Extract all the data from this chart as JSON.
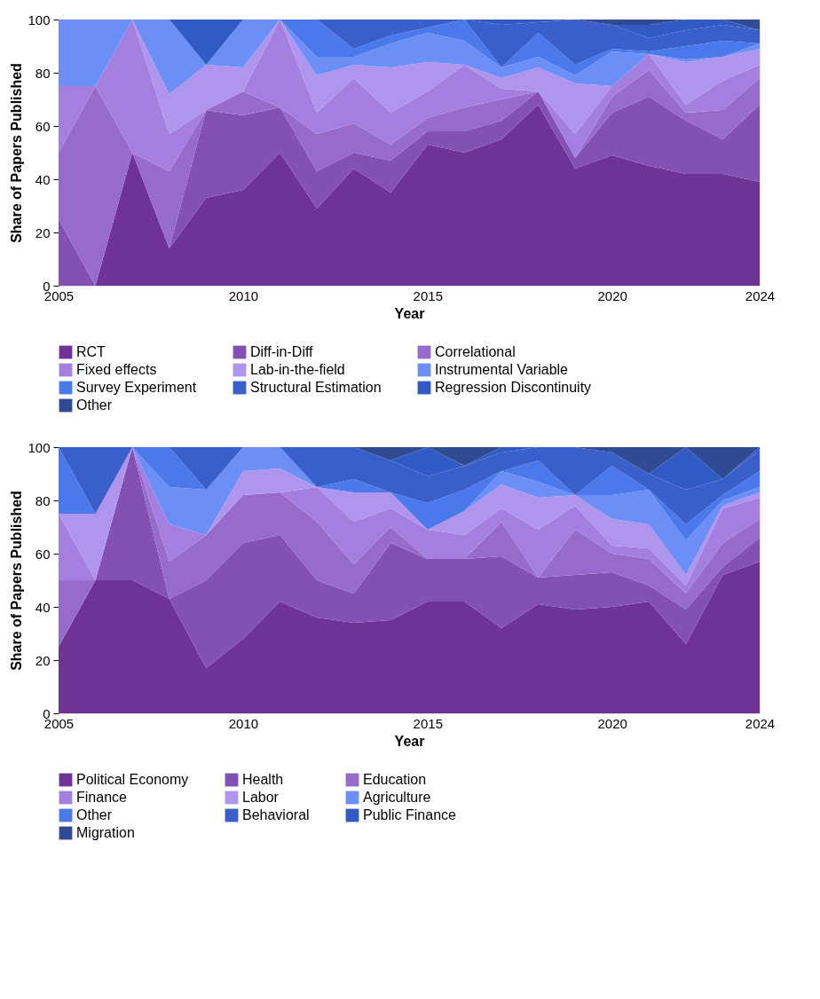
{
  "chart_data": [
    {
      "type": "area",
      "stacked": true,
      "xlabel": "Year",
      "ylabel": "Share of Papers Published",
      "legend": "bottom",
      "grid": false,
      "x": [
        2005,
        2006,
        2007,
        2008,
        2009,
        2010,
        2011,
        2012,
        2013,
        2014,
        2015,
        2016,
        2017,
        2018,
        2019,
        2020,
        2021,
        2022,
        2023,
        2024
      ],
      "xlim": [
        2005,
        2024
      ],
      "xticks": [
        2005,
        2010,
        2015,
        2020,
        2024
      ],
      "ylim": [
        0,
        100
      ],
      "yticks": [
        0,
        20,
        40,
        60,
        80,
        100
      ],
      "tick_labels": "xy",
      "series": [
        {
          "name": "RCT",
          "color": "#6f3398",
          "values": [
            0,
            0,
            50,
            14,
            33,
            36,
            50,
            29,
            44,
            35,
            53,
            50,
            55,
            68,
            44,
            49,
            45,
            42,
            42,
            39
          ]
        },
        {
          "name": "Diff-in-Diff",
          "color": "#8350b3",
          "values": [
            25,
            0,
            0,
            0,
            33,
            28,
            17,
            14,
            6,
            12,
            5,
            8,
            7,
            5,
            4,
            16,
            26,
            20,
            13,
            29
          ]
        },
        {
          "name": "Correlational",
          "color": "#976bcb",
          "values": [
            25,
            75,
            0,
            29,
            0,
            9,
            0,
            14,
            11,
            6,
            5,
            9,
            8,
            0,
            0,
            6,
            10,
            3,
            11,
            10
          ]
        },
        {
          "name": "Fixed effects",
          "color": "#a47fdf",
          "values": [
            25,
            0,
            50,
            14,
            0,
            0,
            33,
            8,
            17,
            12,
            10,
            16,
            4,
            0,
            9,
            4,
            6,
            3,
            11,
            5
          ]
        },
        {
          "name": "Lab-in-the-field",
          "color": "#b095ef",
          "values": [
            0,
            0,
            0,
            15,
            17,
            9,
            0,
            14,
            5,
            17,
            11,
            0,
            4,
            9,
            19,
            0,
            0,
            16,
            9,
            6
          ]
        },
        {
          "name": "Instrumental Variable",
          "color": "#6b8ff7",
          "values": [
            25,
            25,
            0,
            28,
            0,
            18,
            0,
            7,
            3,
            9,
            11,
            9,
            4,
            4,
            3,
            13,
            0,
            1,
            0,
            2
          ]
        },
        {
          "name": "Survey Experiment",
          "color": "#4b78ea",
          "values": [
            0,
            0,
            0,
            0,
            0,
            0,
            0,
            14,
            3,
            3,
            2,
            8,
            0,
            9,
            4,
            1,
            1,
            5,
            6,
            0
          ]
        },
        {
          "name": "Structural Estimation",
          "color": "#3a5fcb",
          "values": [
            0,
            0,
            0,
            0,
            0,
            0,
            0,
            0,
            11,
            6,
            3,
            0,
            16,
            4,
            17,
            9,
            5,
            6,
            6,
            5
          ]
        },
        {
          "name": "Regression Discontinuity",
          "color": "#325ac4",
          "values": [
            0,
            0,
            0,
            0,
            17,
            0,
            0,
            0,
            0,
            0,
            0,
            0,
            2,
            1,
            0,
            0,
            5,
            4,
            2,
            0
          ]
        },
        {
          "name": "Other",
          "color": "#2e4b94",
          "values": [
            0,
            0,
            0,
            0,
            0,
            0,
            0,
            0,
            0,
            0,
            0,
            0,
            0,
            0,
            0,
            2,
            2,
            0,
            0,
            4
          ]
        }
      ]
    },
    {
      "type": "area",
      "stacked": true,
      "xlabel": "Year",
      "ylabel": "Share of Papers Published",
      "legend": "bottom",
      "grid": false,
      "x": [
        2005,
        2006,
        2007,
        2008,
        2009,
        2010,
        2011,
        2012,
        2013,
        2014,
        2015,
        2016,
        2017,
        2018,
        2019,
        2020,
        2021,
        2022,
        2023,
        2024
      ],
      "xlim": [
        2005,
        2024
      ],
      "xticks": [
        2005,
        2010,
        2015,
        2020,
        2024
      ],
      "ylim": [
        0,
        100
      ],
      "yticks": [
        0,
        20,
        40,
        60,
        80,
        100
      ],
      "tick_labels": "xy",
      "series": [
        {
          "name": "Political Economy",
          "color": "#6f3398",
          "values": [
            25,
            50,
            50,
            43,
            17,
            28,
            42,
            36,
            34,
            35,
            42,
            42,
            32,
            41,
            39,
            40,
            42,
            26,
            52,
            57
          ]
        },
        {
          "name": "Health",
          "color": "#8350b3",
          "values": [
            0,
            0,
            50,
            0,
            33,
            36,
            25,
            14,
            11,
            29,
            16,
            16,
            27,
            10,
            13,
            13,
            6,
            13,
            3,
            9
          ]
        },
        {
          "name": "Education",
          "color": "#976bcb",
          "values": [
            25,
            0,
            0,
            14,
            17,
            18,
            16,
            22,
            11,
            6,
            0,
            0,
            13,
            0,
            17,
            7,
            10,
            6,
            9,
            7
          ]
        },
        {
          "name": "Finance",
          "color": "#a47fdf",
          "values": [
            25,
            0,
            0,
            14,
            0,
            0,
            0,
            13,
            16,
            7,
            11,
            9,
            5,
            18,
            9,
            3,
            4,
            3,
            13,
            8
          ]
        },
        {
          "name": "Labor",
          "color": "#b095ef",
          "values": [
            0,
            25,
            0,
            0,
            0,
            9,
            9,
            0,
            11,
            6,
            0,
            9,
            9,
            12,
            4,
            10,
            9,
            4,
            1,
            2
          ]
        },
        {
          "name": "Agriculture",
          "color": "#6b8ff7",
          "values": [
            0,
            0,
            0,
            14,
            17,
            9,
            8,
            0,
            0,
            0,
            0,
            0,
            5,
            6,
            0,
            9,
            13,
            13,
            2,
            2
          ]
        },
        {
          "name": "Other",
          "color": "#4b78ea",
          "values": [
            25,
            0,
            0,
            15,
            0,
            0,
            0,
            0,
            5,
            0,
            10,
            8,
            0,
            8,
            0,
            11,
            0,
            6,
            2,
            6
          ]
        },
        {
          "name": "Behavioral",
          "color": "#3a5fcb",
          "values": [
            0,
            25,
            0,
            0,
            16,
            0,
            0,
            15,
            12,
            12,
            10,
            9,
            7,
            5,
            18,
            5,
            6,
            13,
            6,
            8
          ]
        },
        {
          "name": "Public Finance",
          "color": "#325ac4",
          "values": [
            0,
            0,
            0,
            0,
            0,
            0,
            0,
            0,
            0,
            0,
            11,
            0,
            2,
            0,
            0,
            0,
            0,
            16,
            0,
            1
          ]
        },
        {
          "name": "Migration",
          "color": "#2e4b94",
          "values": [
            0,
            0,
            0,
            0,
            0,
            0,
            0,
            0,
            0,
            5,
            0,
            7,
            0,
            0,
            0,
            2,
            10,
            0,
            12,
            0
          ]
        }
      ]
    }
  ]
}
